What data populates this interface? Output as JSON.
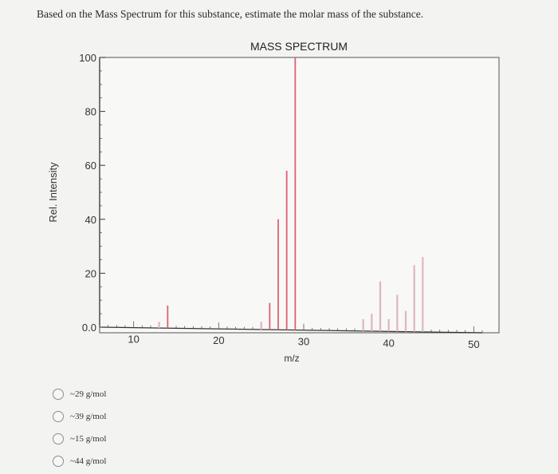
{
  "question": "Based on the Mass Spectrum for this substance, estimate the molar mass of the substance.",
  "options": [
    "~29 g/mol",
    "~39 g/mol",
    "~15 g/mol",
    "~44 g/mol"
  ],
  "chart_data": {
    "type": "bar",
    "title": "MASS SPECTRUM",
    "xlabel": "m/z",
    "ylabel": "Rel. Intensity",
    "xlim": [
      6,
      51
    ],
    "ylim": [
      0,
      100
    ],
    "x_ticks": [
      10,
      20,
      30,
      40,
      50
    ],
    "y_ticks": [
      {
        "value": 0,
        "label": "0.0"
      },
      {
        "value": 20,
        "label": "20"
      },
      {
        "value": 40,
        "label": "40"
      },
      {
        "value": 60,
        "label": "60"
      },
      {
        "value": 80,
        "label": "80"
      },
      {
        "value": 100,
        "label": "100"
      }
    ],
    "series": [
      {
        "color": "#e06070",
        "points": [
          {
            "x": 14,
            "y": 8
          },
          {
            "x": 26,
            "y": 9
          },
          {
            "x": 27,
            "y": 40
          },
          {
            "x": 28,
            "y": 58
          },
          {
            "x": 29,
            "y": 100
          }
        ]
      },
      {
        "color": "#ddb6c2",
        "points": [
          {
            "x": 13,
            "y": 2
          },
          {
            "x": 25,
            "y": 2
          },
          {
            "x": 37,
            "y": 3
          },
          {
            "x": 38,
            "y": 5
          },
          {
            "x": 39,
            "y": 17
          },
          {
            "x": 40,
            "y": 3
          },
          {
            "x": 41,
            "y": 12
          },
          {
            "x": 42,
            "y": 6
          },
          {
            "x": 43,
            "y": 23
          },
          {
            "x": 44,
            "y": 26
          }
        ]
      }
    ],
    "grid": false
  }
}
